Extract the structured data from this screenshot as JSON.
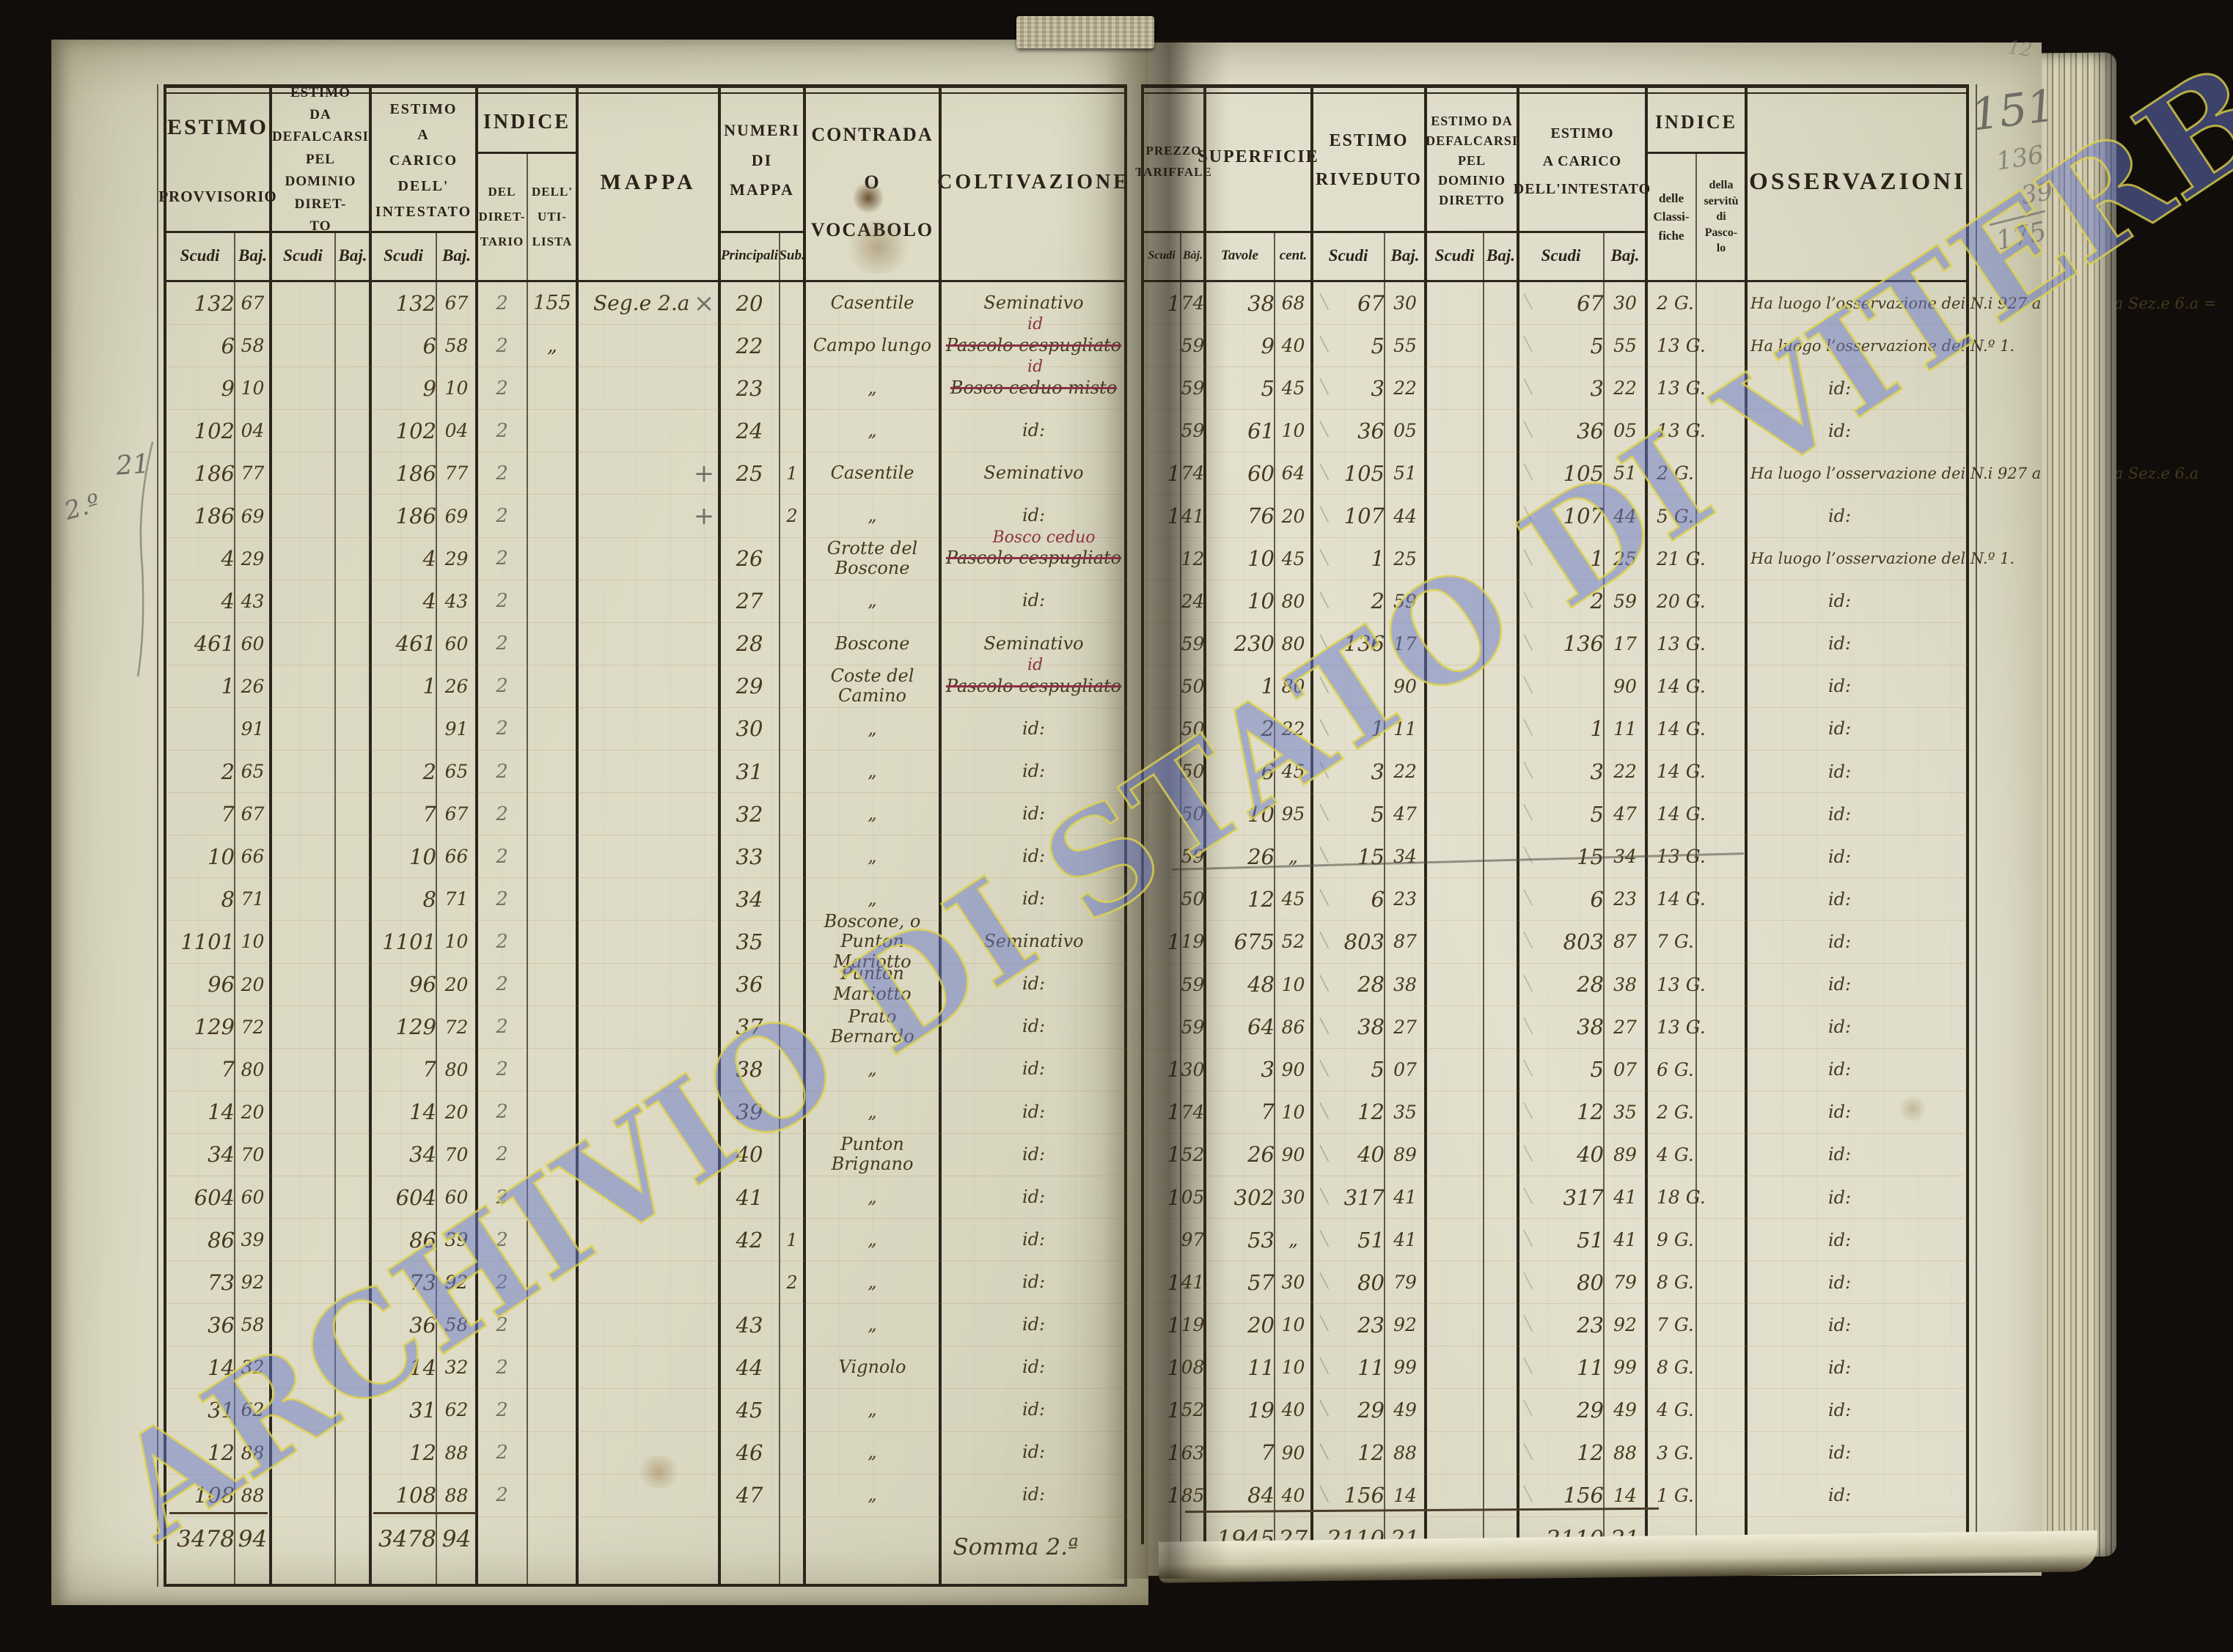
{
  "watermark": "ARCHIVIO DI STATO DI VITERBO",
  "margin_pencil": {
    "top_faint": "12",
    "page_number": "151",
    "sum_a": "136",
    "sum_b": "39",
    "sum_total": "175",
    "left_a": "2.º",
    "left_b": "21"
  },
  "headers": {
    "estimo_provvisorio": {
      "l1": "ESTIMO",
      "l2": "PROVVISORIO",
      "scudi": "Scudi",
      "baj": "Baj."
    },
    "estimo_defalcarsi": {
      "title": "ESTIMO\nDA\nDEFALCARSI\nPEL\nDOMINIO DIRET-\nTO",
      "scudi": "Scudi",
      "baj": "Baj."
    },
    "estimo_carico": {
      "title": "ESTIMO\nA\nCARICO\nDELL'\nINTESTATO",
      "scudi": "Scudi",
      "baj": "Baj."
    },
    "indice": {
      "title": "INDICE",
      "sub1": "DEL\nDIRET-\nTARIO",
      "sub2": "DELL'\nUTI-\nLISTA"
    },
    "mappa": "MAPPA",
    "numeri": {
      "title": "NUMERI\nDI\nMAPPA",
      "sub1": "Principali",
      "sub2": "Sub."
    },
    "contrada": "CONTRADA\nO\nVOCABOLO",
    "coltivazione": "COLTIVAZIONE",
    "prezzo": {
      "title": "PREZZO\nTARIFFALE",
      "scudi": "Scudi",
      "baj": "Bàj."
    },
    "superficie": {
      "title": "SUPERFICIE",
      "sub1": "Tavole",
      "sub2": "cent."
    },
    "riveduto": {
      "title": "ESTIMO\nRIVEDUTO",
      "scudi": "Scudi",
      "baj": "Baj."
    },
    "defalcarsi2": {
      "title": "ESTIMO DA\nDEFALCARSI\nPEL\nDOMINIO\nDIRETTO",
      "scudi": "Scudi",
      "baj": "Baj."
    },
    "carico2": {
      "title": "ESTIMO\nA CARICO\nDELL'INTESTATO",
      "scudi": "Scudi",
      "baj": "Baj."
    },
    "indice2": {
      "title": "INDICE",
      "sub1": "delle\nClassi-\nfiche",
      "sub2": "della\nservitù\ndi\nPasco-\nlo"
    },
    "osservazioni": "OSSERVAZIONI"
  },
  "rows": [
    {
      "ps": "132",
      "pb": "67",
      "cs": "132",
      "cb": "67",
      "di": "2",
      "ut": "155",
      "mp": "Seg.e 2.a",
      "mk": "×",
      "n": "20",
      "sb": "",
      "con": "Casentile",
      "col": "Seminativo",
      "over": "",
      "pz_s": "1",
      "pz_b": "74",
      "su_t": "38",
      "su_c": "68",
      "rv_s": "67",
      "rv_b": "30",
      "c2s": "67",
      "c2b": "30",
      "cl": "2 G.",
      "os": "Ha luogo l’osservazione dei N.i 927 al 939 della Sez.e 6.a ="
    },
    {
      "ps": "6",
      "pb": "58",
      "cs": "6",
      "cb": "58",
      "di": "2",
      "ut": "„",
      "mp": "",
      "mk": "",
      "n": "22",
      "sb": "",
      "con": "Campo lungo",
      "col": "Pascolo cespugliato",
      "over": "id",
      "pz_s": "",
      "pz_b": "59",
      "su_t": "9",
      "su_c": "40",
      "rv_s": "5",
      "rv_b": "55",
      "c2s": "5",
      "c2b": "55",
      "cl": "13 G.",
      "os": "Ha luogo l’osservazione del N.º 1."
    },
    {
      "ps": "9",
      "pb": "10",
      "cs": "9",
      "cb": "10",
      "di": "2",
      "ut": "",
      "mp": "",
      "mk": "",
      "n": "23",
      "sb": "",
      "con": "„",
      "col": "Bosco ceduo misto",
      "over": "id",
      "pz_s": "",
      "pz_b": "59",
      "su_t": "5",
      "su_c": "45",
      "rv_s": "3",
      "rv_b": "22",
      "c2s": "3",
      "c2b": "22",
      "cl": "13 G.",
      "os": "id:"
    },
    {
      "ps": "102",
      "pb": "04",
      "cs": "102",
      "cb": "04",
      "di": "2",
      "ut": "",
      "mp": "",
      "mk": "",
      "n": "24",
      "sb": "",
      "con": "„",
      "col": "id:",
      "over": "",
      "pz_s": "",
      "pz_b": "59",
      "su_t": "61",
      "su_c": "10",
      "rv_s": "36",
      "rv_b": "05",
      "c2s": "36",
      "c2b": "05",
      "cl": "13 G.",
      "os": "id:"
    },
    {
      "ps": "186",
      "pb": "77",
      "cs": "186",
      "cb": "77",
      "di": "2",
      "ut": "",
      "mp": "",
      "mk": "+",
      "n": "25",
      "sb": "1",
      "con": "Casentile",
      "col": "Seminativo",
      "over": "",
      "pz_s": "1",
      "pz_b": "74",
      "su_t": "60",
      "su_c": "64",
      "rv_s": "105",
      "rv_b": "51",
      "c2s": "105",
      "c2b": "51",
      "cl": "2 G.",
      "os": "Ha luogo l’osservazione dei N.i 927 al 939 della Sez.e 6.a"
    },
    {
      "ps": "186",
      "pb": "69",
      "cs": "186",
      "cb": "69",
      "di": "2",
      "ut": "",
      "mp": "",
      "mk": "+",
      "n": "",
      "sb": "2",
      "con": "„",
      "col": "id:",
      "over": "",
      "pz_s": "1",
      "pz_b": "41",
      "su_t": "76",
      "su_c": "20",
      "rv_s": "107",
      "rv_b": "44",
      "c2s": "107",
      "c2b": "44",
      "cl": "5 G.",
      "os": "id:"
    },
    {
      "ps": "4",
      "pb": "29",
      "cs": "4",
      "cb": "29",
      "di": "2",
      "ut": "",
      "mp": "",
      "mk": "",
      "n": "26",
      "sb": "",
      "con": "Grotte del Boscone",
      "col": "Pascolo cespugliato",
      "over": "Bosco ceduo",
      "pz_s": "",
      "pz_b": "12",
      "su_t": "10",
      "su_c": "45",
      "rv_s": "1",
      "rv_b": "25",
      "c2s": "1",
      "c2b": "25",
      "cl": "21 G.",
      "os": "Ha luogo l’osservazione del N.º 1."
    },
    {
      "ps": "4",
      "pb": "43",
      "cs": "4",
      "cb": "43",
      "di": "2",
      "ut": "",
      "mp": "",
      "mk": "",
      "n": "27",
      "sb": "",
      "con": "„",
      "col": "id:",
      "over": "",
      "pz_s": "",
      "pz_b": "24",
      "su_t": "10",
      "su_c": "80",
      "rv_s": "2",
      "rv_b": "59",
      "c2s": "2",
      "c2b": "59",
      "cl": "20 G.",
      "os": "id:"
    },
    {
      "ps": "461",
      "pb": "60",
      "cs": "461",
      "cb": "60",
      "di": "2",
      "ut": "",
      "mp": "",
      "mk": "",
      "n": "28",
      "sb": "",
      "con": "Boscone",
      "col": "Seminativo",
      "over": "",
      "pz_s": "",
      "pz_b": "59",
      "su_t": "230",
      "su_c": "80",
      "rv_s": "136",
      "rv_b": "17",
      "c2s": "136",
      "c2b": "17",
      "cl": "13 G.",
      "os": "id:"
    },
    {
      "ps": "1",
      "pb": "26",
      "cs": "1",
      "cb": "26",
      "di": "2",
      "ut": "",
      "mp": "",
      "mk": "",
      "n": "29",
      "sb": "",
      "con": "Coste del Camino",
      "col": "Pascolo cespugliato",
      "over": "id",
      "pz_s": "",
      "pz_b": "50",
      "su_t": "1",
      "su_c": "80",
      "rv_s": "",
      "rv_b": "90",
      "c2s": "",
      "c2b": "90",
      "cl": "14 G.",
      "os": "id:"
    },
    {
      "ps": "",
      "pb": "91",
      "cs": "",
      "cb": "91",
      "di": "2",
      "ut": "",
      "mp": "",
      "mk": "",
      "n": "30",
      "sb": "",
      "con": "„",
      "col": "id:",
      "over": "",
      "pz_s": "",
      "pz_b": "50",
      "su_t": "2",
      "su_c": "22",
      "rv_s": "1",
      "rv_b": "11",
      "c2s": "1",
      "c2b": "11",
      "cl": "14 G.",
      "os": "id:"
    },
    {
      "ps": "2",
      "pb": "65",
      "cs": "2",
      "cb": "65",
      "di": "2",
      "ut": "",
      "mp": "",
      "mk": "",
      "n": "31",
      "sb": "",
      "con": "„",
      "col": "id:",
      "over": "",
      "pz_s": "",
      "pz_b": "50",
      "su_t": "6",
      "su_c": "45",
      "rv_s": "3",
      "rv_b": "22",
      "c2s": "3",
      "c2b": "22",
      "cl": "14 G.",
      "os": "id:"
    },
    {
      "ps": "7",
      "pb": "67",
      "cs": "7",
      "cb": "67",
      "di": "2",
      "ut": "",
      "mp": "",
      "mk": "",
      "n": "32",
      "sb": "",
      "con": "„",
      "col": "id:",
      "over": "",
      "pz_s": "",
      "pz_b": "50",
      "su_t": "10",
      "su_c": "95",
      "rv_s": "5",
      "rv_b": "47",
      "c2s": "5",
      "c2b": "47",
      "cl": "14 G.",
      "os": "id:"
    },
    {
      "ps": "10",
      "pb": "66",
      "cs": "10",
      "cb": "66",
      "di": "2",
      "ut": "",
      "mp": "",
      "mk": "",
      "n": "33",
      "sb": "",
      "con": "„",
      "col": "id:",
      "over": "",
      "pz_s": "",
      "pz_b": "59",
      "su_t": "26",
      "su_c": "„",
      "rv_s": "15",
      "rv_b": "34",
      "c2s": "15",
      "c2b": "34",
      "cl": "13 G.",
      "os": "id:",
      "pk": true
    },
    {
      "ps": "8",
      "pb": "71",
      "cs": "8",
      "cb": "71",
      "di": "2",
      "ut": "",
      "mp": "",
      "mk": "",
      "n": "34",
      "sb": "",
      "con": "„",
      "col": "id:",
      "over": "",
      "pz_s": "",
      "pz_b": "50",
      "su_t": "12",
      "su_c": "45",
      "rv_s": "6",
      "rv_b": "23",
      "c2s": "6",
      "c2b": "23",
      "cl": "14 G.",
      "os": "id:"
    },
    {
      "ps": "1101",
      "pb": "10",
      "cs": "1101",
      "cb": "10",
      "di": "2",
      "ut": "",
      "mp": "",
      "mk": "",
      "n": "35",
      "sb": "",
      "con": "Boscone, o Punton\nMariotto",
      "col": "Seminativo",
      "over": "",
      "pz_s": "1",
      "pz_b": "19",
      "su_t": "675",
      "su_c": "52",
      "rv_s": "803",
      "rv_b": "87",
      "c2s": "803",
      "c2b": "87",
      "cl": "7 G.",
      "os": "id:"
    },
    {
      "ps": "96",
      "pb": "20",
      "cs": "96",
      "cb": "20",
      "di": "2",
      "ut": "",
      "mp": "",
      "mk": "",
      "n": "36",
      "sb": "",
      "con": "Punton Mariotto",
      "col": "id:",
      "over": "",
      "pz_s": "",
      "pz_b": "59",
      "su_t": "48",
      "su_c": "10",
      "rv_s": "28",
      "rv_b": "38",
      "c2s": "28",
      "c2b": "38",
      "cl": "13 G.",
      "os": "id:"
    },
    {
      "ps": "129",
      "pb": "72",
      "cs": "129",
      "cb": "72",
      "di": "2",
      "ut": "",
      "mp": "",
      "mk": "",
      "n": "37",
      "sb": "",
      "con": "Prato Bernardo",
      "col": "id:",
      "over": "",
      "pz_s": "",
      "pz_b": "59",
      "su_t": "64",
      "su_c": "86",
      "rv_s": "38",
      "rv_b": "27",
      "c2s": "38",
      "c2b": "27",
      "cl": "13 G.",
      "os": "id:"
    },
    {
      "ps": "7",
      "pb": "80",
      "cs": "7",
      "cb": "80",
      "di": "2",
      "ut": "",
      "mp": "",
      "mk": "",
      "n": "38",
      "sb": "",
      "con": "„",
      "col": "id:",
      "over": "",
      "pz_s": "1",
      "pz_b": "30",
      "su_t": "3",
      "su_c": "90",
      "rv_s": "5",
      "rv_b": "07",
      "c2s": "5",
      "c2b": "07",
      "cl": "6 G.",
      "os": "id:"
    },
    {
      "ps": "14",
      "pb": "20",
      "cs": "14",
      "cb": "20",
      "di": "2",
      "ut": "",
      "mp": "",
      "mk": "",
      "n": "39",
      "sb": "",
      "con": "„",
      "col": "id:",
      "over": "",
      "pz_s": "1",
      "pz_b": "74",
      "su_t": "7",
      "su_c": "10",
      "rv_s": "12",
      "rv_b": "35",
      "c2s": "12",
      "c2b": "35",
      "cl": "2 G.",
      "os": "id:"
    },
    {
      "ps": "34",
      "pb": "70",
      "cs": "34",
      "cb": "70",
      "di": "2",
      "ut": "",
      "mp": "",
      "mk": "",
      "n": "40",
      "sb": "",
      "con": "Punton Brignano",
      "col": "id:",
      "over": "",
      "pz_s": "1",
      "pz_b": "52",
      "su_t": "26",
      "su_c": "90",
      "rv_s": "40",
      "rv_b": "89",
      "c2s": "40",
      "c2b": "89",
      "cl": "4 G.",
      "os": "id:"
    },
    {
      "ps": "604",
      "pb": "60",
      "cs": "604",
      "cb": "60",
      "di": "2",
      "ut": "",
      "mp": "",
      "mk": "",
      "n": "41",
      "sb": "",
      "con": "„",
      "col": "id:",
      "over": "",
      "pz_s": "1",
      "pz_b": "05",
      "su_t": "302",
      "su_c": "30",
      "rv_s": "317",
      "rv_b": "41",
      "c2s": "317",
      "c2b": "41",
      "cl": "18 G.",
      "os": "id:"
    },
    {
      "ps": "86",
      "pb": "39",
      "cs": "86",
      "cb": "39",
      "di": "2",
      "ut": "",
      "mp": "",
      "mk": "",
      "n": "42",
      "sb": "1",
      "con": "„",
      "col": "id:",
      "over": "",
      "pz_s": "",
      "pz_b": "97",
      "su_t": "53",
      "su_c": "„",
      "rv_s": "51",
      "rv_b": "41",
      "c2s": "51",
      "c2b": "41",
      "cl": "9 G.",
      "os": "id:"
    },
    {
      "ps": "73",
      "pb": "92",
      "cs": "73",
      "cb": "92",
      "di": "2",
      "ut": "",
      "mp": "",
      "mk": "",
      "n": "",
      "sb": "2",
      "con": "„",
      "col": "id:",
      "over": "",
      "pz_s": "1",
      "pz_b": "41",
      "su_t": "57",
      "su_c": "30",
      "rv_s": "80",
      "rv_b": "79",
      "c2s": "80",
      "c2b": "79",
      "cl": "8 G.",
      "os": "id:"
    },
    {
      "ps": "36",
      "pb": "58",
      "cs": "36",
      "cb": "58",
      "di": "2",
      "ut": "",
      "mp": "",
      "mk": "",
      "n": "43",
      "sb": "",
      "con": "„",
      "col": "id:",
      "over": "",
      "pz_s": "1",
      "pz_b": "19",
      "su_t": "20",
      "su_c": "10",
      "rv_s": "23",
      "rv_b": "92",
      "c2s": "23",
      "c2b": "92",
      "cl": "7 G.",
      "os": "id:"
    },
    {
      "ps": "14",
      "pb": "32",
      "cs": "14",
      "cb": "32",
      "di": "2",
      "ut": "",
      "mp": "",
      "mk": "",
      "n": "44",
      "sb": "",
      "con": "Vignolo",
      "col": "id:",
      "over": "",
      "pz_s": "1",
      "pz_b": "08",
      "su_t": "11",
      "su_c": "10",
      "rv_s": "11",
      "rv_b": "99",
      "c2s": "11",
      "c2b": "99",
      "cl": "8 G.",
      "os": "id:"
    },
    {
      "ps": "31",
      "pb": "62",
      "cs": "31",
      "cb": "62",
      "di": "2",
      "ut": "",
      "mp": "",
      "mk": "",
      "n": "45",
      "sb": "",
      "con": "„",
      "col": "id:",
      "over": "",
      "pz_s": "1",
      "pz_b": "52",
      "su_t": "19",
      "su_c": "40",
      "rv_s": "29",
      "rv_b": "49",
      "c2s": "29",
      "c2b": "49",
      "cl": "4 G.",
      "os": "id:"
    },
    {
      "ps": "12",
      "pb": "88",
      "cs": "12",
      "cb": "88",
      "di": "2",
      "ut": "",
      "mp": "",
      "mk": "",
      "n": "46",
      "sb": "",
      "con": "„",
      "col": "id:",
      "over": "",
      "pz_s": "1",
      "pz_b": "63",
      "su_t": "7",
      "su_c": "90",
      "rv_s": "12",
      "rv_b": "88",
      "c2s": "12",
      "c2b": "88",
      "cl": "3 G.",
      "os": "id:"
    },
    {
      "ps": "108",
      "pb": "88",
      "cs": "108",
      "cb": "88",
      "di": "2",
      "ut": "",
      "mp": "",
      "mk": "",
      "n": "47",
      "sb": "",
      "con": "„",
      "col": "id:",
      "over": "",
      "pz_s": "1",
      "pz_b": "85",
      "su_t": "84",
      "su_c": "40",
      "rv_s": "156",
      "rv_b": "14",
      "c2s": "156",
      "c2b": "14",
      "cl": "1 G.",
      "os": "id:"
    }
  ],
  "totals": {
    "label": "Somma 2.ª",
    "prov_s": "3478",
    "prov_b": "94",
    "car_s": "3478",
    "car_b": "94",
    "sup_t": "1945",
    "sup_c": "27",
    "riv_s": "2110",
    "riv_b": "21",
    "car2_s": "2110",
    "car2_b": "21"
  }
}
